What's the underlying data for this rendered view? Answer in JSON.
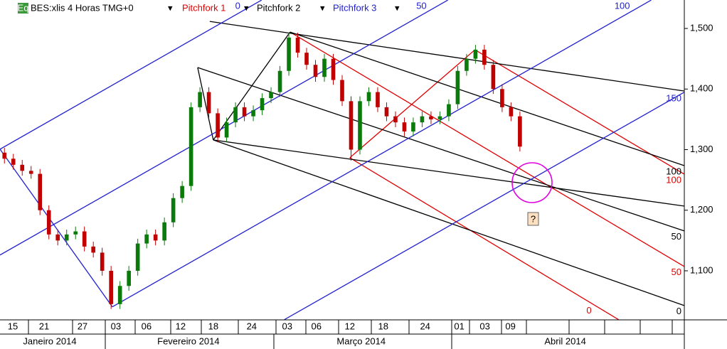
{
  "header": {
    "icon": "Eq",
    "symbol": "BES:xlis 4 Horas TMG+0"
  },
  "chart_data": {
    "type": "candlestick",
    "x": [
      0,
      1,
      2,
      3,
      4,
      5,
      6,
      7,
      8,
      9,
      10,
      11,
      12,
      13,
      14,
      15,
      16,
      17,
      18,
      19,
      20,
      21,
      22,
      23,
      24,
      25,
      26,
      27,
      28,
      29,
      30,
      31,
      32,
      33,
      34,
      35,
      36,
      37,
      38,
      39,
      40,
      41,
      42,
      43,
      44,
      45,
      46,
      47,
      48,
      49,
      50,
      51,
      52,
      53,
      54,
      55,
      56,
      57,
      58
    ],
    "open": [
      1295,
      1285,
      1275,
      1265,
      1260,
      1200,
      1160,
      1150,
      1160,
      1165,
      1140,
      1130,
      1100,
      1045,
      1075,
      1100,
      1145,
      1160,
      1150,
      1180,
      1220,
      1240,
      1370,
      1395,
      1360,
      1320,
      1345,
      1370,
      1355,
      1365,
      1385,
      1395,
      1430,
      1485,
      1460,
      1440,
      1420,
      1450,
      1415,
      1380,
      1300,
      1380,
      1395,
      1370,
      1355,
      1345,
      1330,
      1345,
      1355,
      1350,
      1355,
      1375,
      1430,
      1450,
      1465,
      1440,
      1400,
      1370,
      1355
    ],
    "high": [
      1303,
      1293,
      1283,
      1273,
      1268,
      1208,
      1168,
      1168,
      1173,
      1173,
      1148,
      1138,
      1108,
      1083,
      1108,
      1153,
      1168,
      1168,
      1188,
      1228,
      1248,
      1378,
      1403,
      1403,
      1368,
      1353,
      1378,
      1378,
      1373,
      1393,
      1403,
      1438,
      1493,
      1493,
      1468,
      1448,
      1458,
      1458,
      1423,
      1388,
      1388,
      1403,
      1403,
      1378,
      1363,
      1353,
      1353,
      1363,
      1363,
      1363,
      1383,
      1438,
      1458,
      1473,
      1473,
      1448,
      1408,
      1378,
      1363
    ],
    "low": [
      1277,
      1267,
      1257,
      1252,
      1192,
      1152,
      1142,
      1142,
      1152,
      1132,
      1122,
      1092,
      1037,
      1037,
      1067,
      1092,
      1137,
      1142,
      1142,
      1172,
      1212,
      1232,
      1362,
      1352,
      1312,
      1312,
      1337,
      1347,
      1347,
      1357,
      1377,
      1387,
      1422,
      1452,
      1432,
      1412,
      1412,
      1407,
      1372,
      1282,
      1292,
      1372,
      1362,
      1347,
      1337,
      1322,
      1322,
      1337,
      1342,
      1342,
      1347,
      1367,
      1422,
      1442,
      1432,
      1392,
      1362,
      1347,
      1297
    ],
    "close": [
      1285,
      1275,
      1265,
      1260,
      1200,
      1160,
      1150,
      1160,
      1165,
      1140,
      1130,
      1100,
      1045,
      1075,
      1100,
      1145,
      1160,
      1150,
      1180,
      1220,
      1240,
      1370,
      1395,
      1360,
      1320,
      1345,
      1370,
      1355,
      1365,
      1385,
      1395,
      1430,
      1485,
      1460,
      1440,
      1420,
      1450,
      1415,
      1380,
      1300,
      1380,
      1395,
      1370,
      1355,
      1345,
      1330,
      1345,
      1355,
      1350,
      1355,
      1375,
      1430,
      1450,
      1465,
      1440,
      1400,
      1370,
      1355,
      1305
    ],
    "up_color": "#0a7a0a",
    "down_color": "#c00000",
    "xlim": [
      -0.5,
      76.5
    ],
    "ylim": [
      1019,
      1547
    ],
    "yticks": [
      {
        "value": 1500,
        "label": "1,500"
      },
      {
        "value": 1400,
        "label": "1,400"
      },
      {
        "value": 1300,
        "label": "1,300"
      },
      {
        "value": 1200,
        "label": "1,200"
      },
      {
        "value": 1100,
        "label": "1,100"
      }
    ],
    "xticks": [
      {
        "value": 0.94,
        "label": "15"
      },
      {
        "value": 4.46,
        "label": "21"
      },
      {
        "value": 8.78,
        "label": "27"
      },
      {
        "value": 12.54,
        "label": "03"
      },
      {
        "value": 15.98,
        "label": "06"
      },
      {
        "value": 19.82,
        "label": "12"
      },
      {
        "value": 23.5,
        "label": "18"
      },
      {
        "value": 27.82,
        "label": "24"
      },
      {
        "value": 31.82,
        "label": "03"
      },
      {
        "value": 35.1,
        "label": "06"
      },
      {
        "value": 38.86,
        "label": "12"
      },
      {
        "value": 42.62,
        "label": "18"
      },
      {
        "value": 47.34,
        "label": "24"
      },
      {
        "value": 51.18,
        "label": "01"
      },
      {
        "value": 54.06,
        "label": "03"
      },
      {
        "value": 56.94,
        "label": "09"
      }
    ],
    "month_ticks": [
      {
        "value": 5.1,
        "label": "Janeiro 2014"
      },
      {
        "value": 20.7,
        "label": "Fevereiro 2014"
      },
      {
        "value": 40.14,
        "label": "Março 2014"
      },
      {
        "value": 63.1,
        "label": "Abril 2014"
      }
    ],
    "pitchforks": [
      {
        "name": "Pitchfork 1",
        "color": "#e00000",
        "lines": [
          {
            "x": [
              32.14,
              76.46
            ],
            "y": [
              1494.1,
              1107.3
            ],
            "label": "50"
          },
          {
            "x": [
              38.86,
              69.1
            ],
            "y": [
              1286.6,
              1019.4
            ],
            "label": "0"
          },
          {
            "x": [
              52.94,
              76.46
            ],
            "y": [
              1464.8,
              1259.7
            ],
            "label": "100"
          },
          {
            "x": [
              38.86,
              52.94
            ],
            "y": [
              1286.6,
              1464.8
            ]
          }
        ]
      },
      {
        "name": "Pitchfork 2",
        "color": "#000000",
        "lines": [
          {
            "x": [
              23.1,
              76.46
            ],
            "y": [
              1511.7,
              1396.8
            ]
          },
          {
            "x": [
              23.5,
              32.14
            ],
            "y": [
              1316.0,
              1494.1
            ]
          },
          {
            "x": [
              21.74,
              23.5
            ],
            "y": [
              1435.5,
              1316.0
            ]
          },
          {
            "x": [
              32.14,
              76.46
            ],
            "y": [
              1494.1,
              1273.7
            ],
            "label": "100"
          },
          {
            "x": [
              21.74,
              76.46
            ],
            "y": [
              1435.5,
              1165.9
            ],
            "label": "50"
          },
          {
            "x": [
              23.5,
              76.46
            ],
            "y": [
              1316.0,
              1042.8
            ],
            "label": "0"
          },
          {
            "x": [
              23.5,
              76.46
            ],
            "y": [
              1316.0,
              1206.9
            ]
          }
        ]
      },
      {
        "name": "Pitchfork 3",
        "color": "#2020d0",
        "lines": [
          {
            "x": [
              -0.5,
              12.14
            ],
            "y": [
              1300.7,
              1040.5
            ]
          },
          {
            "x": [
              -0.5,
              28.94
            ],
            "y": [
              1300.7,
              1546.9
            ],
            "label": "0"
          },
          {
            "x": [
              -0.5,
              49.9
            ],
            "y": [
              1126.0,
              1546.9
            ],
            "label": "50"
          },
          {
            "x": [
              12.14,
              72.78
            ],
            "y": [
              1040.5,
              1546.9
            ],
            "label": "100"
          },
          {
            "x": [
              31.5,
              76.46
            ],
            "y": [
              1019.4,
              1394.5
            ],
            "label": "150"
          }
        ]
      }
    ],
    "annotation": "?"
  }
}
